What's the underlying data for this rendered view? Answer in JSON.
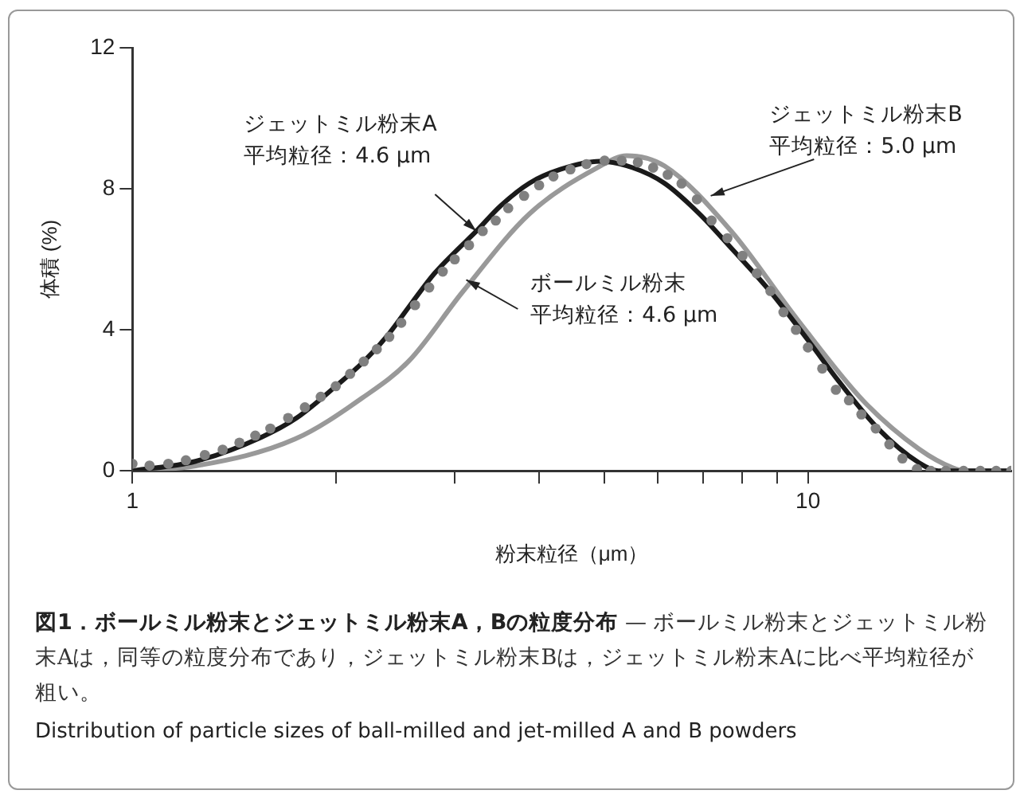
{
  "chart_data": {
    "type": "line",
    "xlabel": "粉末粒径（μm）",
    "ylabel": "体積 (%)",
    "title": "図1．ボールミル粉末とジェットミル粉末A，Bの粒度分布",
    "subtitle": "— ボールミル粉末とジェットミル粉末Aは，同等の粒度分布であり，ジェットミル粉末Bは，ジェットミル粉末Aに比べ平均粒径が粗い。",
    "log": "x",
    "xlim": [
      1,
      20
    ],
    "xticks": [
      1,
      {
        "value": 2,
        "label": null
      },
      {
        "value": 3,
        "label": null
      },
      {
        "value": 4,
        "label": null
      },
      {
        "value": 5,
        "label": null
      },
      {
        "value": 6,
        "label": null
      },
      {
        "value": 7,
        "label": null
      },
      {
        "value": 8,
        "label": null
      },
      {
        "value": 9,
        "label": null
      },
      10
    ],
    "ylim": [
      0,
      12
    ],
    "yticks": [
      0,
      4,
      8,
      12
    ],
    "grid": false,
    "legend": false,
    "marker": "none",
    "line_style": "solid",
    "series": [
      {
        "color": "#1a1a1a",
        "x": [
          1,
          1.24,
          1.55,
          1.75,
          2,
          2.2,
          2.4,
          2.6,
          2.8,
          3,
          3.23,
          3.5,
          3.87,
          4.3,
          4.92,
          5.5,
          6.13,
          6.9,
          7.69,
          8.81,
          10,
          11.1,
          12.7,
          14.6,
          15.6,
          20
        ],
        "values": [
          0,
          0.27,
          0.95,
          1.5,
          2.4,
          3.1,
          3.9,
          4.8,
          5.6,
          6.2,
          6.8,
          7.5,
          8.16,
          8.55,
          8.78,
          8.6,
          8.16,
          7.3,
          6.33,
          5.07,
          3.71,
          2.55,
          1.2,
          0.23,
          0,
          0
        ]
      },
      {
        "color": "#999999",
        "x": [
          1,
          1.24,
          1.74,
          2.19,
          2.57,
          3.08,
          3.87,
          4.87,
          5.39,
          6.13,
          7.69,
          9.65,
          12.1,
          14.6,
          16.4,
          17.1,
          20
        ],
        "values": [
          0,
          0.14,
          0.9,
          2.07,
          3.13,
          5.07,
          7.29,
          8.59,
          8.94,
          8.65,
          6.81,
          4.29,
          1.97,
          0.62,
          0.08,
          0,
          0
        ]
      },
      {
        "type": "scatter",
        "marker": "circle",
        "color": "#808080",
        "x": [
          1,
          1.06,
          1.13,
          1.2,
          1.28,
          1.36,
          1.44,
          1.52,
          1.6,
          1.7,
          1.8,
          1.9,
          2,
          2.1,
          2.2,
          2.3,
          2.4,
          2.5,
          2.62,
          2.75,
          2.88,
          3,
          3.15,
          3.3,
          3.45,
          3.6,
          3.8,
          4,
          4.2,
          4.45,
          4.7,
          5,
          5.3,
          5.6,
          5.9,
          6.2,
          6.5,
          6.85,
          7.2,
          7.6,
          8,
          8.4,
          8.8,
          9.2,
          9.6,
          10,
          10.5,
          11,
          11.5,
          12,
          12.6,
          13.2,
          13.8,
          14.5,
          15.2,
          16,
          17,
          18,
          19,
          20
        ],
        "values": [
          0.2,
          0.15,
          0.2,
          0.3,
          0.45,
          0.6,
          0.8,
          1,
          1.2,
          1.5,
          1.8,
          2.1,
          2.4,
          2.75,
          3.1,
          3.45,
          3.8,
          4.2,
          4.7,
          5.2,
          5.65,
          6,
          6.4,
          6.8,
          7.1,
          7.45,
          7.8,
          8.1,
          8.35,
          8.55,
          8.7,
          8.8,
          8.8,
          8.75,
          8.6,
          8.4,
          8.15,
          7.7,
          7.1,
          6.6,
          6.1,
          5.6,
          5.1,
          4.5,
          4,
          3.5,
          2.9,
          2.3,
          2,
          1.6,
          1.2,
          0.75,
          0.35,
          0.05,
          0,
          0,
          0,
          0,
          0,
          0
        ]
      }
    ],
    "annotations": [
      "ジェットミル粉末A",
      {
        "text": "平均粒径：4.6 μm",
        "x": 3.23,
        "y": 6.8
      },
      "ジェットミル粉末B",
      {
        "text": "平均粒径：5.0 μm",
        "x": 7.18,
        "y": 7.8
      },
      {
        "text": "ボールミル粉末",
        "x": 3.12,
        "y": 5.42
      },
      "平均粒径：4.6 μm",
      "Distribution of particle sizes of ball-milled and jet-milled A and B powders"
    ]
  }
}
